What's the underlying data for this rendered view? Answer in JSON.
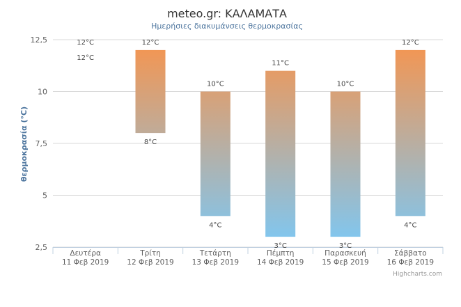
{
  "chart_data": {
    "type": "columnrange",
    "title": "meteo.gr: ΚΑΛΑΜΑΤΑ",
    "subtitle": "Ημερήσιες διακυμάνσεις θερμοκρασίας",
    "ylabel": "θερμοκρασία (°C)",
    "ylim": [
      2.5,
      12.5
    ],
    "yticks": [
      "2,5",
      "5",
      "7,5",
      "10",
      "12,5"
    ],
    "ytick_values": [
      2.5,
      5,
      7.5,
      10,
      12.5
    ],
    "grid": true,
    "categories": [
      [
        "Δευτέρα",
        "11 Φεβ 2019"
      ],
      [
        "Τρίτη",
        "12 Φεβ 2019"
      ],
      [
        "Τετάρτη",
        "13 Φεβ 2019"
      ],
      [
        "Πέμπτη",
        "14 Φεβ 2019"
      ],
      [
        "Παρασκευή",
        "15 Φεβ 2019"
      ],
      [
        "Σάββατο",
        "16 Φεβ 2019"
      ]
    ],
    "series": [
      {
        "low": [
          12,
          8,
          4,
          3,
          3,
          4
        ],
        "high": [
          12,
          12,
          10,
          11,
          10,
          12
        ],
        "low_labels": [
          "12°C",
          "8°C",
          "4°C",
          "3°C",
          "3°C",
          "4°C"
        ],
        "high_labels": [
          "12°C",
          "12°C",
          "10°C",
          "11°C",
          "10°C",
          "12°C"
        ]
      }
    ],
    "colors": {
      "warm": "#f7944d",
      "cold": "#7cc8f5",
      "grid": "#d8d8d8",
      "axis": "#c0d0e0"
    }
  },
  "credits": "Highcharts.com"
}
